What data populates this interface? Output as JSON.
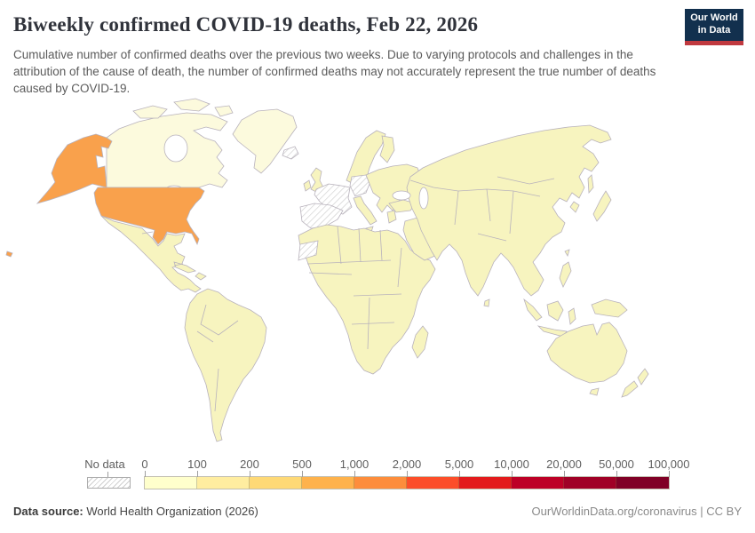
{
  "header": {
    "title": "Biweekly confirmed COVID-19 deaths, Feb 22, 2026",
    "logo": {
      "line1": "Our World",
      "line2": "in Data",
      "bg": "#12304e",
      "accent": "#c0393f"
    }
  },
  "subtitle": "Cumulative number of confirmed deaths over the previous two weeks. Due to varying protocols and challenges in the attribution of the cause of death, the number of confirmed deaths may not accurately represent the true number of deaths caused by COVID-19.",
  "map": {
    "colors": {
      "pale": "#f7f4bf",
      "pale_light": "#fcfadd",
      "usa_orange": "#f9a14c",
      "ocean": "#ffffff",
      "border": "#b8b2bc",
      "no_data_fill": "url(#hatchPattern)",
      "hatch_line": "#c9c9c9"
    }
  },
  "legend": {
    "no_data_label": "No data",
    "ticks": [
      "0",
      "100",
      "200",
      "500",
      "1,000",
      "2,000",
      "5,000",
      "10,000",
      "20,000",
      "50,000",
      "100,000"
    ],
    "colors": [
      "#ffffcc",
      "#ffeda0",
      "#fed976",
      "#feb24c",
      "#fd8d3c",
      "#fc4e2a",
      "#e31a1c",
      "#bd0026",
      "#a00026",
      "#800026"
    ]
  },
  "footer": {
    "source_label": "Data source:",
    "source_value": " World Health Organization (2026)",
    "credit": "OurWorldinData.org/coronavirus | CC BY"
  },
  "chart_data": {
    "type": "choropleth",
    "title": "Biweekly confirmed COVID-19 deaths, Feb 22, 2026",
    "date": "Feb 22, 2026",
    "metric": "Biweekly confirmed COVID-19 deaths",
    "bin_edges": [
      0,
      100,
      200,
      500,
      1000,
      2000,
      5000,
      10000,
      20000,
      50000,
      100000
    ],
    "bin_colors": [
      "#ffffcc",
      "#ffeda0",
      "#fed976",
      "#feb24c",
      "#fd8d3c",
      "#fc4e2a",
      "#e31a1c",
      "#bd0026",
      "#a00026",
      "#800026"
    ],
    "no_data_regions": [
      "France",
      "Germany",
      "Spain",
      "Iceland",
      "Western Sahara"
    ],
    "regions": [
      {
        "name": "United States",
        "approx_bin": "500–2,000",
        "color": "#f9a14c"
      },
      {
        "name": "Canada",
        "approx_bin": "0–100",
        "color": "#fcfadd"
      },
      {
        "name": "Greenland",
        "approx_bin": "0–100",
        "color": "#fcfadd"
      },
      {
        "name": "Most other countries",
        "approx_bin": "0–200",
        "color": "#f7f4bf"
      }
    ],
    "legend_position": "bottom",
    "source": "World Health Organization (2026)"
  }
}
